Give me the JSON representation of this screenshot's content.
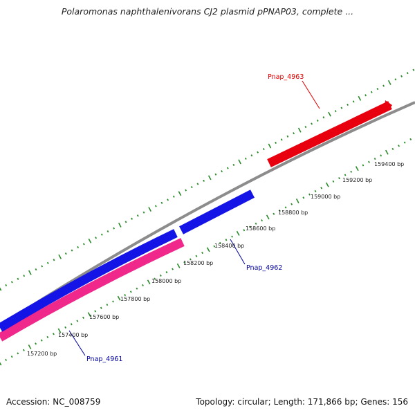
{
  "title": "Polaromonas naphthalenivorans CJ2 plasmid pPNAP03, complete ...",
  "footer": {
    "accession": "Accession: NC_008759",
    "summary": "Topology: circular; Length: 171,866 bp; Genes: 156"
  },
  "colors": {
    "backbone": "#8c8c8c",
    "ticks": "#2a8a2a",
    "red_gene": "#e8000f",
    "blue_gene": "#1414e6",
    "pink_gene": "#f0288c",
    "red_label": "#dd0000",
    "blue_label": "#00009e"
  },
  "scale_labels": [
    "157200 bp",
    "157400 bp",
    "157600 bp",
    "157800 bp",
    "158000 bp",
    "158200 bp",
    "158400 bp",
    "158600 bp",
    "158800 bp",
    "159000 bp",
    "159200 bp",
    "159400 bp"
  ],
  "genes": [
    {
      "name": "Pnap_4963",
      "color": "red"
    },
    {
      "name": "Pnap_4962",
      "color": "blue"
    },
    {
      "name": "Pnap_4961",
      "color": "blue"
    }
  ]
}
